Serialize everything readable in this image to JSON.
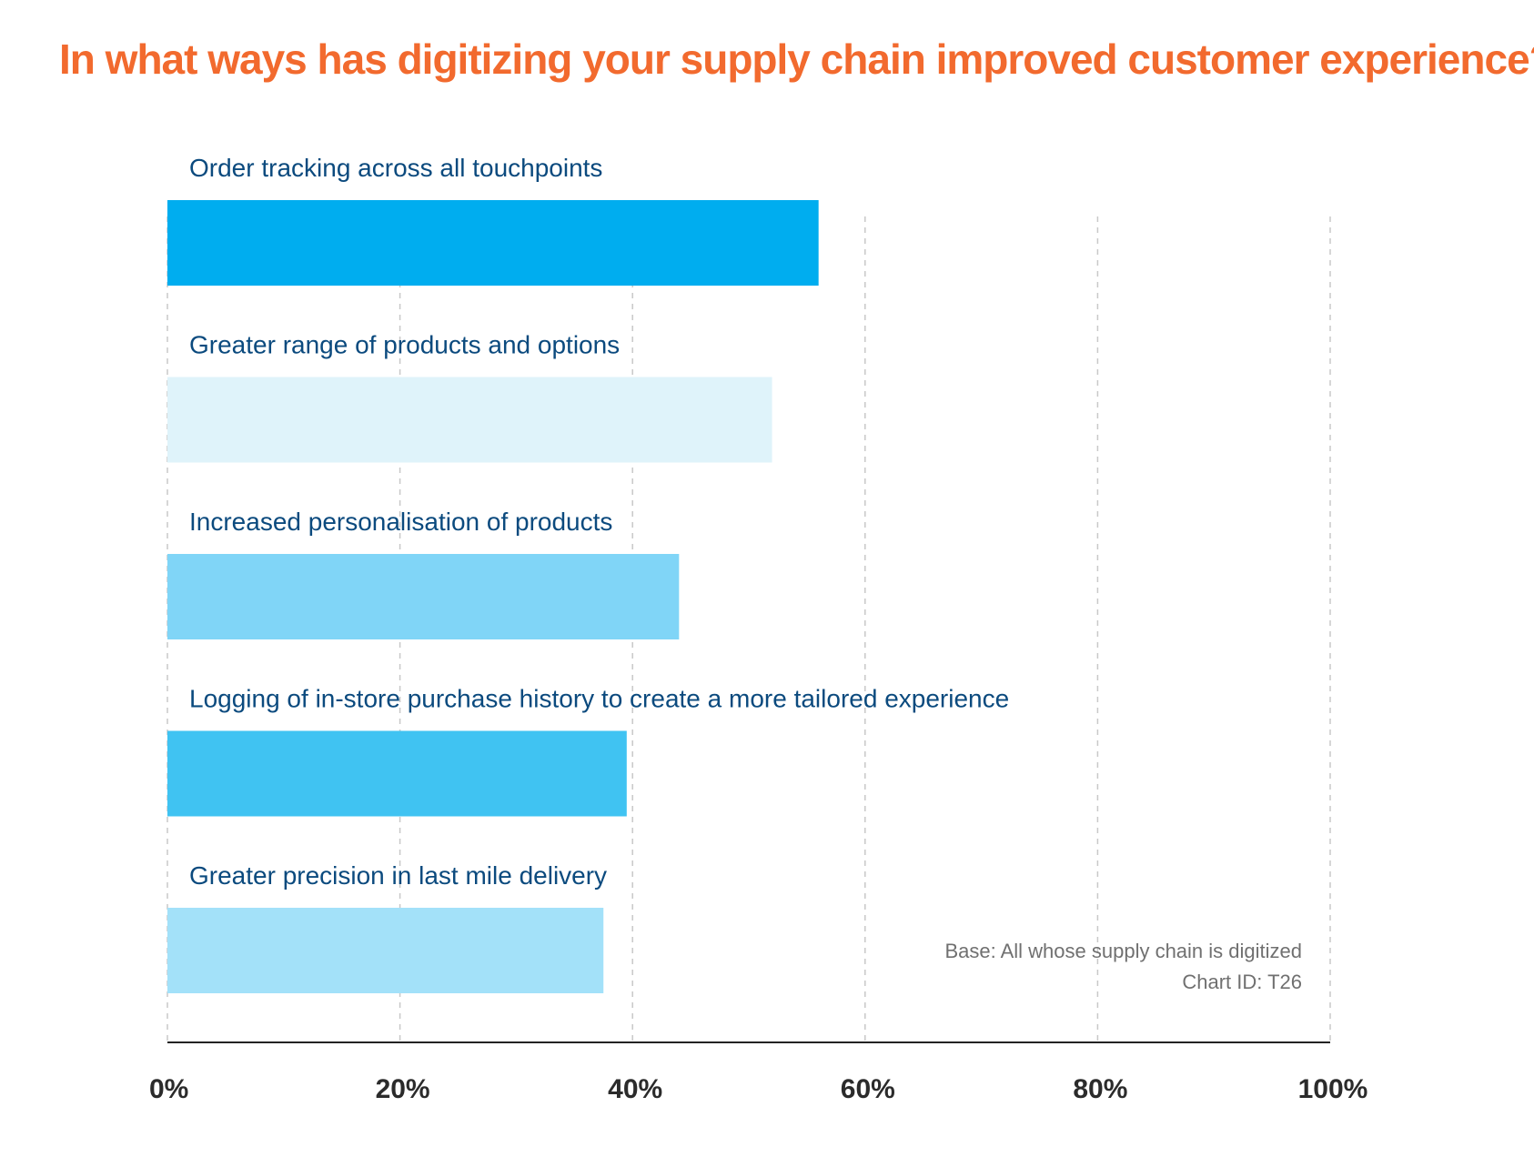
{
  "chart_data": {
    "type": "bar",
    "orientation": "horizontal",
    "title": "In what ways has digitizing your supply chain improved customer experience?",
    "categories": [
      "Order tracking across all touchpoints",
      "Greater range of products and options",
      "Increased personalisation of products",
      "Logging of in-store purchase history to create a more tailored experience",
      "Greater precision in last mile delivery"
    ],
    "values": [
      56,
      52,
      44,
      39.5,
      37.5
    ],
    "bar_colors": [
      "#00adef",
      "#dff3fa",
      "#80d5f7",
      "#40c3f2",
      "#a3e1f9"
    ],
    "xlim": [
      0,
      100
    ],
    "x_ticks": [
      "0%",
      "20%",
      "40%",
      "60%",
      "80%",
      "100%"
    ],
    "grid": "vertical dashed",
    "notes": [
      "Base: All whose supply chain is digitized",
      "Chart ID: T26"
    ],
    "colors": {
      "title": "#f26a2e",
      "label": "#0b4a7e",
      "tick": "#2b2b2b",
      "note": "#707070",
      "grid": "#c8c8c8",
      "axis": "#222222"
    }
  }
}
